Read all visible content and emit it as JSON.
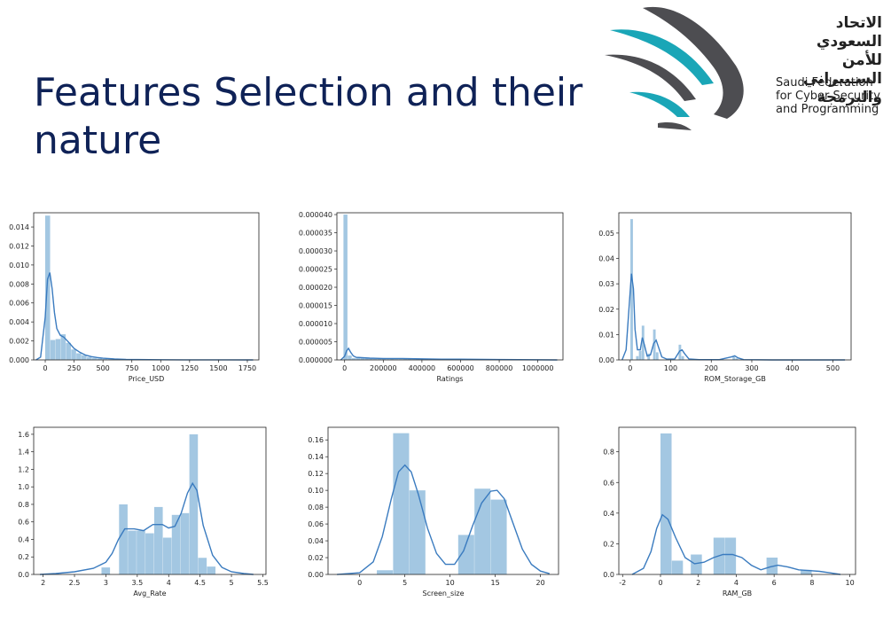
{
  "slide": {
    "title": "Features Selection and their nature"
  },
  "logo": {
    "arabic_text": "الاتحاد السعودي للأمن السـيبراني والبرمجة",
    "english_lines": [
      "Saudi Federation",
      "for Cyber Security",
      "and Programming"
    ],
    "colors": {
      "teal": "#1aa6b7",
      "dark": "#4d4d51"
    }
  },
  "colors": {
    "bar": "#9ec4e0",
    "kde": "#3a7bbf",
    "title": "#0f2257"
  },
  "chart_data": [
    {
      "type": "bar",
      "xlabel": "Price_USD",
      "xlim": [
        -100,
        1850
      ],
      "ylim": [
        0,
        0.0155
      ],
      "xticks": [
        0,
        250,
        500,
        750,
        1000,
        1250,
        1500,
        1750
      ],
      "yticks": [
        0.0,
        0.002,
        0.004,
        0.006,
        0.008,
        0.01,
        0.012,
        0.014
      ],
      "ytick_labels": [
        "0.000",
        "0.002",
        "0.004",
        "0.006",
        "0.008",
        "0.010",
        "0.012",
        "0.014"
      ],
      "bin_width": 45,
      "bins_x": [
        22,
        67,
        112,
        157,
        202,
        247,
        292,
        337,
        382,
        427,
        472,
        517,
        562,
        607,
        652,
        697,
        742,
        787,
        832,
        877,
        922,
        967,
        1012,
        1057,
        1102,
        1147
      ],
      "hist": [
        0.0152,
        0.0021,
        0.0022,
        0.0027,
        0.0018,
        0.0011,
        0.0007,
        0.0005,
        0.0003,
        0.0002,
        0.00015,
        0.0001,
        8e-05,
        6e-05,
        5e-05,
        4e-05,
        3e-05,
        3e-05,
        2e-05,
        2e-05,
        1e-05,
        1e-05,
        1e-05,
        1e-05,
        1e-05,
        1e-05
      ],
      "kde_x": [
        -80,
        -40,
        0,
        20,
        40,
        60,
        80,
        100,
        130,
        160,
        200,
        250,
        300,
        350,
        400,
        450,
        500,
        600,
        700,
        800,
        1000,
        1200,
        1500,
        1800
      ],
      "kde_y": [
        0.0,
        0.0003,
        0.0045,
        0.0085,
        0.0092,
        0.0075,
        0.005,
        0.0033,
        0.0026,
        0.0024,
        0.0019,
        0.0012,
        0.0008,
        0.0005,
        0.00035,
        0.00025,
        0.00018,
        0.0001,
        6e-05,
        4e-05,
        2e-05,
        1e-05,
        5e-06,
        0.0
      ]
    },
    {
      "type": "bar",
      "xlabel": "Ratings",
      "xlim": [
        -40000,
        1130000
      ],
      "ylim": [
        0,
        4.05e-05
      ],
      "xticks": [
        0,
        200000,
        400000,
        600000,
        800000,
        1000000
      ],
      "yticks": [
        0.0,
        5e-06,
        1e-05,
        1.5e-05,
        2e-05,
        2.5e-05,
        3e-05,
        3.5e-05,
        4e-05
      ],
      "ytick_labels": [
        "0.000000",
        "0.000005",
        "0.000010",
        "0.000015",
        "0.000020",
        "0.000025",
        "0.000030",
        "0.000035",
        "0.000040"
      ],
      "bin_width": 22000,
      "bins_x": [
        5000,
        27000,
        49000,
        71000,
        93000,
        115000,
        137000,
        159000,
        181000,
        203000,
        225000,
        247000,
        269000,
        291000,
        313000,
        335000,
        357000,
        379000,
        401000,
        423000,
        445000,
        467000,
        489000,
        511000,
        533000,
        555000,
        577000,
        599000,
        621000,
        643000,
        665000,
        687000
      ],
      "hist": [
        4e-05,
        1.2e-06,
        5e-07,
        8e-07,
        7e-07,
        4e-07,
        6e-07,
        3e-07,
        3e-07,
        5e-07,
        2e-07,
        3e-07,
        2e-07,
        2e-07,
        3e-07,
        4e-07,
        2e-07,
        3e-07,
        2e-07,
        2e-07,
        1e-07,
        2e-07,
        1e-07,
        1e-07,
        1e-07,
        2e-07,
        1e-07,
        1e-07,
        1e-07,
        1e-07,
        1e-07,
        1e-07
      ],
      "kde_x": [
        -20000,
        0,
        10000,
        20000,
        30000,
        45000,
        60000,
        90000,
        130000,
        200000,
        300000,
        400000,
        500000,
        600000,
        800000,
        1100000
      ],
      "kde_y": [
        0.0,
        1e-06,
        2.5e-06,
        3.2e-06,
        2.2e-06,
        1.1e-06,
        7e-07,
        6e-07,
        5e-07,
        4e-07,
        4e-07,
        3e-07,
        2e-07,
        2e-07,
        1e-07,
        0.0
      ]
    },
    {
      "type": "bar",
      "xlabel": "ROM_Storage_GB",
      "xlim": [
        -28,
        545
      ],
      "ylim": [
        0,
        0.058
      ],
      "xticks": [
        0,
        100,
        200,
        300,
        400,
        500
      ],
      "yticks": [
        0.0,
        0.01,
        0.02,
        0.03,
        0.04,
        0.05
      ],
      "ytick_labels": [
        "0.00",
        "0.01",
        "0.02",
        "0.03",
        "0.04",
        "0.05"
      ],
      "bin_width": 7,
      "bins_x": [
        4,
        18,
        25,
        32,
        46,
        60,
        67,
        123,
        130,
        256,
        263
      ],
      "hist": [
        0.0555,
        0.0015,
        0.0036,
        0.0135,
        0.0025,
        0.012,
        0.003,
        0.006,
        0.0015,
        0.0012,
        0.0006
      ],
      "kde_x": [
        -20,
        -10,
        -3,
        3,
        8,
        12,
        18,
        25,
        30,
        35,
        42,
        50,
        58,
        64,
        70,
        78,
        90,
        110,
        122,
        128,
        134,
        145,
        170,
        220,
        250,
        258,
        266,
        280,
        350,
        530
      ],
      "kde_y": [
        0.0,
        0.004,
        0.02,
        0.034,
        0.028,
        0.012,
        0.004,
        0.004,
        0.0088,
        0.006,
        0.0015,
        0.002,
        0.0065,
        0.0078,
        0.005,
        0.0012,
        0.0003,
        0.0004,
        0.0035,
        0.004,
        0.0025,
        0.0004,
        0.0001,
        0.0001,
        0.0012,
        0.0016,
        0.0008,
        0.0001,
        0.0,
        0.0
      ]
    },
    {
      "type": "bar",
      "xlabel": "Avg_Rate",
      "xlim": [
        1.85,
        5.55
      ],
      "ylim": [
        0,
        1.68
      ],
      "xticks": [
        2.0,
        2.5,
        3.0,
        3.5,
        4.0,
        4.5,
        5.0,
        5.5
      ],
      "yticks": [
        0.0,
        0.2,
        0.4,
        0.6,
        0.8,
        1.0,
        1.2,
        1.4,
        1.6
      ],
      "ytick_labels": [
        "0.0",
        "0.2",
        "0.4",
        "0.6",
        "0.8",
        "1.0",
        "1.2",
        "1.4",
        "1.6"
      ],
      "bin_width": 0.14,
      "bins_x": [
        3.0,
        3.14,
        3.28,
        3.42,
        3.56,
        3.7,
        3.84,
        3.98,
        4.12,
        4.26,
        4.4,
        4.54,
        4.68
      ],
      "hist": [
        0.08,
        0.0,
        0.8,
        0.5,
        0.5,
        0.47,
        0.77,
        0.42,
        0.68,
        0.7,
        1.6,
        0.19,
        0.09
      ],
      "kde_x": [
        1.95,
        2.2,
        2.5,
        2.8,
        3.0,
        3.1,
        3.2,
        3.3,
        3.45,
        3.6,
        3.75,
        3.9,
        4.0,
        4.1,
        4.2,
        4.3,
        4.38,
        4.45,
        4.55,
        4.7,
        4.85,
        5.0,
        5.2,
        5.35
      ],
      "kde_y": [
        0.0,
        0.01,
        0.03,
        0.07,
        0.14,
        0.24,
        0.4,
        0.52,
        0.52,
        0.5,
        0.57,
        0.57,
        0.53,
        0.55,
        0.7,
        0.93,
        1.04,
        0.96,
        0.56,
        0.22,
        0.08,
        0.03,
        0.01,
        0.0
      ]
    },
    {
      "type": "bar",
      "xlabel": "Screen_size",
      "xlim": [
        -3.5,
        22
      ],
      "ylim": [
        0,
        0.175
      ],
      "xticks": [
        0,
        5,
        10,
        15,
        20
      ],
      "yticks": [
        0.0,
        0.02,
        0.04,
        0.06,
        0.08,
        0.1,
        0.12,
        0.14,
        0.16
      ],
      "ytick_labels": [
        "0.00",
        "0.02",
        "0.04",
        "0.06",
        "0.08",
        "0.10",
        "0.12",
        "0.14",
        "0.16"
      ],
      "bin_width": 1.8,
      "bins_x": [
        2.8,
        4.6,
        6.4,
        11.8,
        13.6,
        15.4
      ],
      "hist": [
        0.005,
        0.168,
        0.1,
        0.047,
        0.102,
        0.089
      ],
      "kde_x": [
        -2.5,
        0,
        1.5,
        2.5,
        3.5,
        4.3,
        5.0,
        5.7,
        6.5,
        7.5,
        8.5,
        9.5,
        10.5,
        11.5,
        12.5,
        13.5,
        14.5,
        15.2,
        16,
        17,
        18,
        19,
        20,
        21
      ],
      "kde_y": [
        0.0,
        0.002,
        0.015,
        0.045,
        0.09,
        0.122,
        0.13,
        0.122,
        0.095,
        0.055,
        0.025,
        0.012,
        0.012,
        0.028,
        0.058,
        0.085,
        0.099,
        0.1,
        0.09,
        0.06,
        0.03,
        0.012,
        0.004,
        0.001
      ]
    },
    {
      "type": "bar",
      "xlabel": "RAM_GB",
      "xlim": [
        -2.2,
        10.3
      ],
      "ylim": [
        0,
        0.96
      ],
      "xticks": [
        -2,
        0,
        2,
        4,
        6,
        8,
        10
      ],
      "yticks": [
        0.0,
        0.2,
        0.4,
        0.6,
        0.8
      ],
      "ytick_labels": [
        "0.0",
        "0.2",
        "0.4",
        "0.6",
        "0.8"
      ],
      "bin_width": 0.6,
      "bins_x": [
        0.3,
        0.9,
        1.9,
        3.1,
        3.7,
        5.9,
        7.7
      ],
      "hist": [
        0.92,
        0.09,
        0.13,
        0.24,
        0.24,
        0.11,
        0.03
      ],
      "kde_x": [
        -1.5,
        -0.9,
        -0.5,
        -0.2,
        0.1,
        0.4,
        0.8,
        1.3,
        1.8,
        2.3,
        2.8,
        3.3,
        3.8,
        4.3,
        4.8,
        5.3,
        5.8,
        6.2,
        6.7,
        7.3,
        7.9,
        8.4,
        9.0,
        9.5
      ],
      "kde_y": [
        0.0,
        0.04,
        0.15,
        0.3,
        0.39,
        0.36,
        0.24,
        0.11,
        0.07,
        0.08,
        0.11,
        0.13,
        0.13,
        0.11,
        0.06,
        0.03,
        0.05,
        0.06,
        0.05,
        0.03,
        0.025,
        0.02,
        0.01,
        0.0
      ]
    }
  ]
}
